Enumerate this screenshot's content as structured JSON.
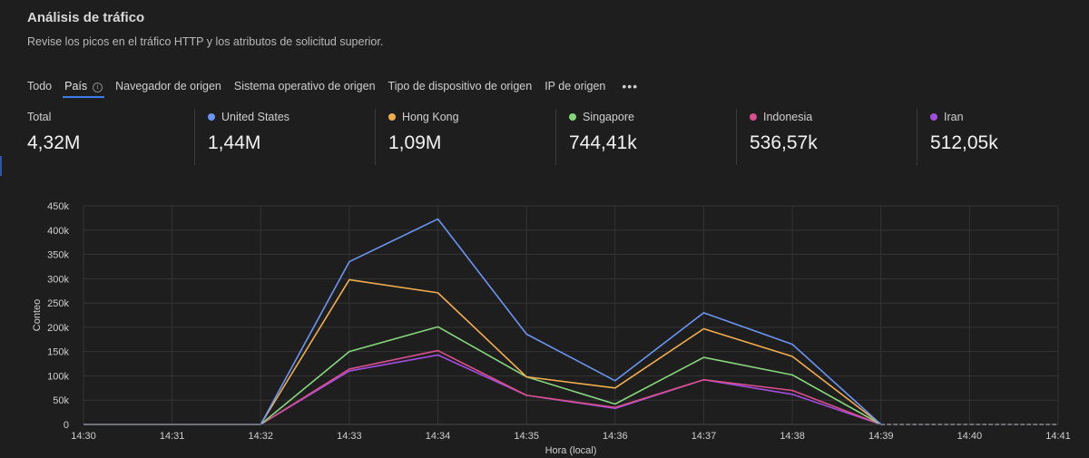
{
  "header": {
    "title": "Análisis de tráfico",
    "subtitle": "Revise los picos en el tráfico HTTP y los atributos de solicitud superior."
  },
  "tabs": [
    {
      "label": "Todo",
      "active": false
    },
    {
      "label": "País",
      "active": true,
      "info_icon": "info-icon"
    },
    {
      "label": "Navegador de origen",
      "active": false
    },
    {
      "label": "Sistema operativo de origen",
      "active": false
    },
    {
      "label": "Tipo de dispositivo de origen",
      "active": false
    },
    {
      "label": "IP de origen",
      "active": false
    }
  ],
  "more_icon": "more-horizontal-icon",
  "stats": [
    {
      "label": "Total",
      "value": "4,32M"
    },
    {
      "label": "United States",
      "value": "1,44M",
      "color": "#6b95f2"
    },
    {
      "label": "Hong Kong",
      "value": "1,09M",
      "color": "#f2ac4e"
    },
    {
      "label": "Singapore",
      "value": "744,41k",
      "color": "#86d67c"
    },
    {
      "label": "Indonesia",
      "value": "536,57k",
      "color": "#d84f8a"
    },
    {
      "label": "Iran",
      "value": "512,05k",
      "color": "#a24ee0"
    }
  ],
  "chart_data": {
    "type": "line",
    "x": [
      "14:30",
      "14:31",
      "14:32",
      "14:33",
      "14:34",
      "14:35",
      "14:36",
      "14:37",
      "14:38",
      "14:39",
      "14:40",
      "14:41"
    ],
    "xlabel": "Hora (local)",
    "ylabel": "Conteo",
    "ylim": [
      0,
      450000
    ],
    "yticks": [
      0,
      50000,
      100000,
      150000,
      200000,
      250000,
      300000,
      350000,
      400000,
      450000
    ],
    "ytick_labels": [
      "0",
      "50k",
      "100k",
      "150k",
      "200k",
      "250k",
      "300k",
      "350k",
      "400k",
      "450k"
    ],
    "grid": true,
    "legend": "none",
    "series": [
      {
        "name": "United States",
        "color": "#6b95f2",
        "values": [
          0,
          0,
          0,
          335000,
          423000,
          186000,
          90000,
          230000,
          165000,
          0,
          0,
          0
        ]
      },
      {
        "name": "Hong Kong",
        "color": "#f2ac4e",
        "values": [
          0,
          0,
          0,
          298000,
          271000,
          98000,
          75000,
          197000,
          140000,
          0,
          0,
          0
        ]
      },
      {
        "name": "Singapore",
        "color": "#86d67c",
        "values": [
          0,
          0,
          0,
          150000,
          201000,
          98000,
          42000,
          138000,
          102000,
          0,
          0,
          0
        ]
      },
      {
        "name": "Indonesia",
        "color": "#d84f8a",
        "values": [
          0,
          0,
          0,
          114000,
          152000,
          60000,
          35000,
          92000,
          70000,
          0,
          0,
          0
        ]
      },
      {
        "name": "Iran",
        "color": "#a24ee0",
        "values": [
          0,
          0,
          0,
          110000,
          143000,
          60000,
          33000,
          92000,
          62000,
          0,
          0,
          0
        ]
      }
    ]
  }
}
